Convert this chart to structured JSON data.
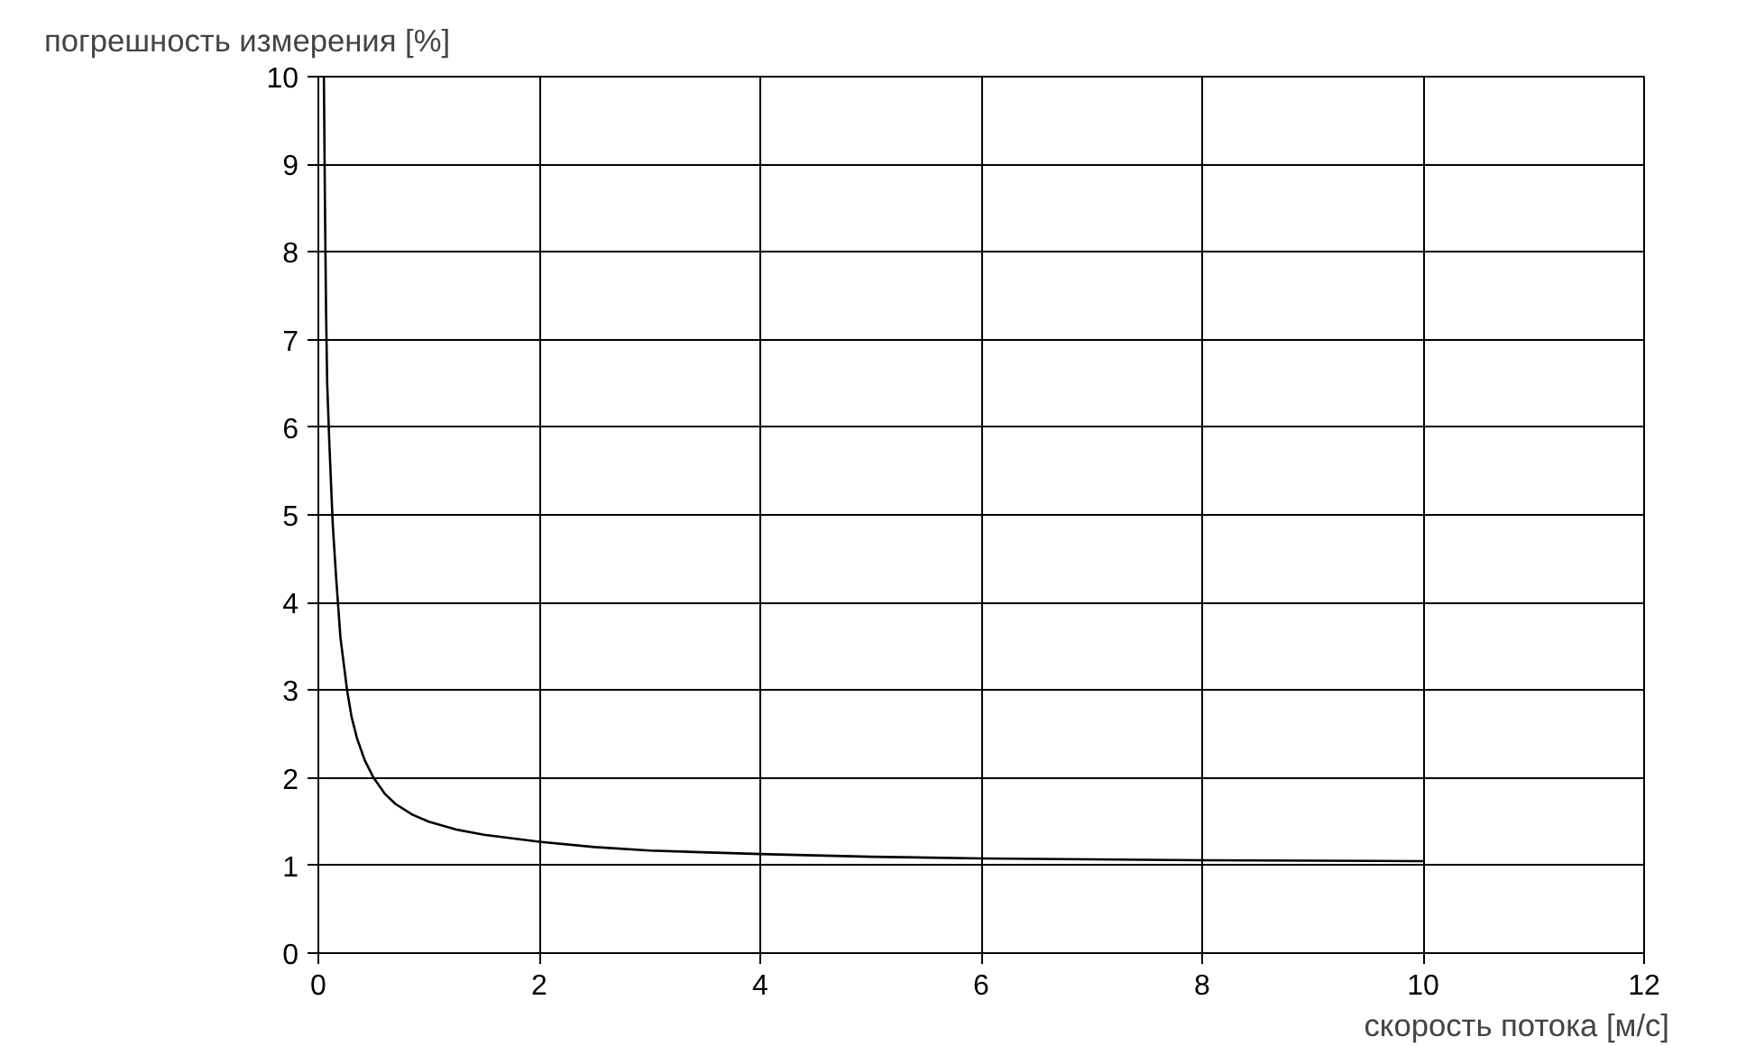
{
  "chart_data": {
    "type": "line",
    "xlabel": "скорость потока [м/с]",
    "ylabel": "погрешность измерения [%]",
    "x": [
      0.05,
      0.06,
      0.07,
      0.08,
      0.1,
      0.13,
      0.16,
      0.2,
      0.26,
      0.3,
      0.35,
      0.42,
      0.5,
      0.6,
      0.7,
      0.85,
      1,
      1.25,
      1.5,
      2,
      2.5,
      3,
      4,
      5,
      6,
      8,
      10
    ],
    "series": [
      {
        "color": "#000000",
        "values": [
          10,
          8.5,
          7.3,
          6.5,
          5.8,
          4.9,
          4.3,
          3.6,
          3.0,
          2.7,
          2.45,
          2.2,
          2.0,
          1.82,
          1.7,
          1.58,
          1.5,
          1.41,
          1.35,
          1.27,
          1.21,
          1.17,
          1.13,
          1.1,
          1.08,
          1.06,
          1.05
        ]
      }
    ],
    "xlim": [
      0,
      12
    ],
    "ylim": [
      0,
      10
    ],
    "xticks": [
      0,
      2,
      4,
      6,
      8,
      10,
      12
    ],
    "yticks": [
      0,
      1,
      2,
      3,
      4,
      5,
      6,
      7,
      8,
      9,
      10
    ],
    "grid": true,
    "marker": "none",
    "line_style": "solid"
  }
}
